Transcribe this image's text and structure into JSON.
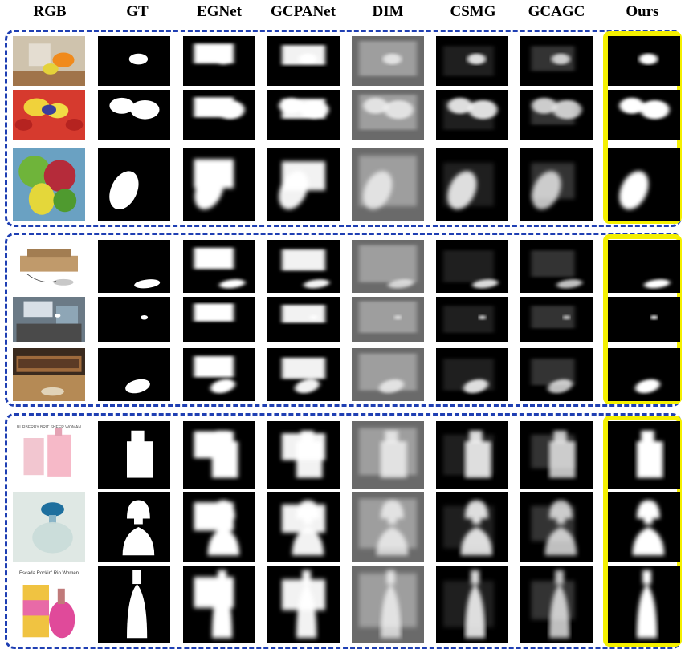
{
  "headers": [
    "RGB",
    "GT",
    "EGNet",
    "GCPANet",
    "DIM",
    "CSMG",
    "GCAGC",
    "Ours"
  ],
  "groups": [
    {
      "name": "fruits-group",
      "rows": [
        "orange-glass",
        "strawberries",
        "apples"
      ]
    },
    {
      "name": "desk-group",
      "rows": [
        "mouse-boxes",
        "office-desk",
        "keyboard-desk"
      ]
    },
    {
      "name": "perfume-group",
      "rows": [
        "burberry-perfume",
        "perfume-bottle",
        "escada-perfume"
      ]
    }
  ],
  "captions": {
    "row7": "BURBERRY BRIT SHEER WOMAN",
    "row9": "Escada Rockin' Rio Women"
  },
  "colors": {
    "group_border": "#1f3fb3",
    "highlight": "#f4f000",
    "mask_bg": "#000000"
  }
}
